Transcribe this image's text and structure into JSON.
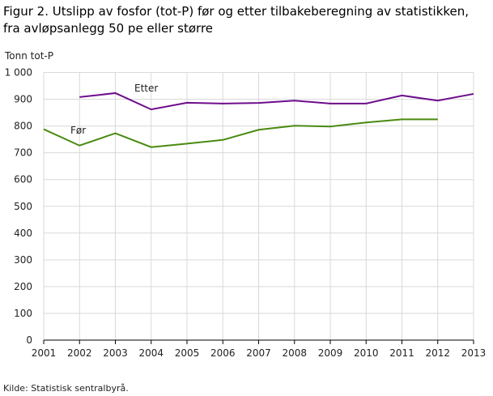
{
  "chart_data": {
    "type": "line",
    "title": "Figur 2. Utslipp av fosfor (tot-P) før og etter tilbakeberegning av statistikken, fra avløpsanlegg 50 pe eller større",
    "ylabel": "Tonn tot-P",
    "xlabel": "",
    "x": [
      2001,
      2002,
      2003,
      2004,
      2005,
      2006,
      2007,
      2008,
      2009,
      2010,
      2011,
      2012,
      2013
    ],
    "ylim": [
      0,
      1000
    ],
    "yticks": [
      0,
      100,
      200,
      300,
      400,
      500,
      600,
      700,
      800,
      900,
      1000
    ],
    "ytick_labels": [
      "0",
      "100",
      "200",
      "300",
      "400",
      "500",
      "600",
      "700",
      "800",
      "900",
      "1 000"
    ],
    "grid": true,
    "legend": "inline labels",
    "series": [
      {
        "name": "Etter",
        "color": "#6e0d8c",
        "values": [
          null,
          908,
          923,
          862,
          887,
          884,
          886,
          895,
          884,
          884,
          914,
          895,
          920
        ]
      },
      {
        "name": "Før",
        "color": "#4a8a10",
        "values": [
          788,
          727,
          773,
          721,
          734,
          748,
          786,
          801,
          798,
          813,
          825,
          825,
          null
        ]
      }
    ]
  },
  "source": "Kilde: Statistisk sentralbyrå."
}
